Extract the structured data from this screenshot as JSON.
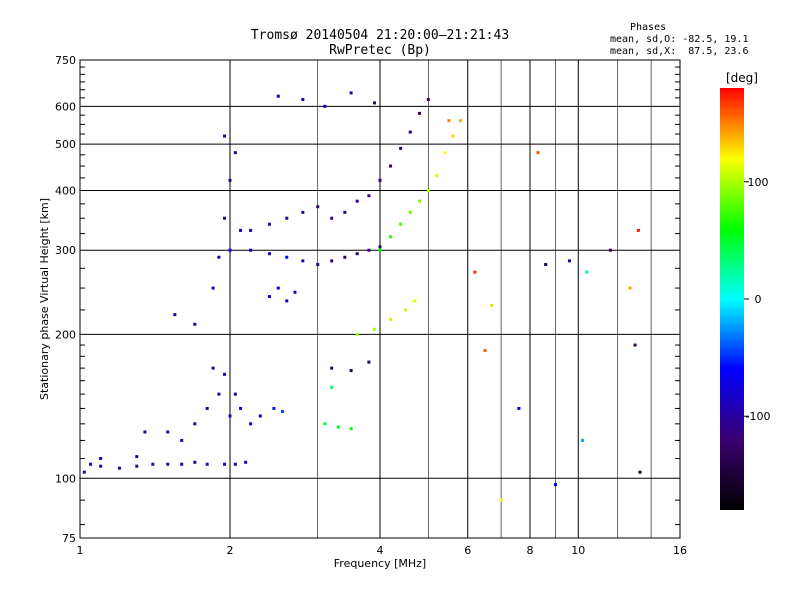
{
  "header": {
    "title": "Tromsø 20140504 21:20:00–21:21:43",
    "subtitle": "RwPretec (Bp)"
  },
  "phase_stats": {
    "label": "Phases",
    "o_line": "mean, sd,O: -82.5, 19.1",
    "x_line": "mean, sd,X:  87.5, 23.6"
  },
  "chart_data": {
    "type": "scatter",
    "xlabel": "Frequency [MHz]",
    "ylabel": "Stationary phase Virtual Height [km]",
    "x_scale": "log2",
    "y_scale": "log",
    "xlim": [
      1,
      16
    ],
    "ylim": [
      75,
      750
    ],
    "x_ticks": [
      1,
      2,
      4,
      6,
      8,
      10,
      16
    ],
    "y_ticks": [
      75,
      100,
      200,
      300,
      400,
      500,
      600,
      750
    ],
    "grid": true,
    "colorbar": {
      "label": "[deg]",
      "range": [
        -180,
        180
      ],
      "ticks": [
        100,
        0,
        -100
      ],
      "colors": [
        "#000000",
        "#3a0070",
        "#0000ff",
        "#00ffff",
        "#00ff00",
        "#ffff00",
        "#ff0000"
      ]
    },
    "series": [
      {
        "values": [
          [
            1.02,
            103,
            -95
          ],
          [
            1.05,
            107,
            -92
          ],
          [
            1.1,
            106,
            -98
          ],
          [
            1.2,
            105,
            -100
          ],
          [
            1.3,
            106,
            -97
          ],
          [
            1.4,
            107,
            -100
          ],
          [
            1.5,
            107,
            -102
          ],
          [
            1.6,
            107,
            -99
          ],
          [
            1.7,
            108,
            -96
          ],
          [
            1.8,
            107,
            -100
          ],
          [
            1.95,
            107,
            -100
          ],
          [
            2.05,
            107,
            -101
          ],
          [
            2.15,
            108,
            -96
          ],
          [
            1.1,
            110,
            -90
          ],
          [
            1.3,
            111,
            -95
          ]
        ]
      },
      {
        "values": [
          [
            1.35,
            125,
            -100
          ],
          [
            1.5,
            125,
            -95
          ],
          [
            1.6,
            120,
            -98
          ],
          [
            1.7,
            130,
            -100
          ],
          [
            1.8,
            140,
            -105
          ],
          [
            1.9,
            150,
            -100
          ],
          [
            2.0,
            135,
            -90
          ],
          [
            2.1,
            140,
            -80
          ],
          [
            2.2,
            130,
            -85
          ],
          [
            2.3,
            135,
            -80
          ],
          [
            2.45,
            140,
            -55
          ],
          [
            2.55,
            138,
            -45
          ],
          [
            1.85,
            170,
            -100
          ],
          [
            1.95,
            165,
            -95
          ],
          [
            2.05,
            150,
            -100
          ]
        ]
      },
      {
        "values": [
          [
            1.55,
            220,
            -95
          ],
          [
            1.7,
            210,
            -90
          ],
          [
            1.85,
            250,
            -95
          ],
          [
            1.9,
            290,
            -100
          ],
          [
            1.95,
            350,
            -105
          ],
          [
            2.0,
            420,
            -110
          ],
          [
            2.05,
            480,
            -110
          ],
          [
            1.95,
            520,
            -100
          ],
          [
            2.1,
            330,
            -90
          ]
        ]
      },
      {
        "values": [
          [
            2.0,
            300,
            -70
          ],
          [
            2.2,
            300,
            -75
          ],
          [
            2.4,
            295,
            -80
          ],
          [
            2.6,
            290,
            -60
          ],
          [
            2.8,
            285,
            -90
          ],
          [
            3.0,
            280,
            -110
          ],
          [
            3.2,
            285,
            -120
          ],
          [
            3.4,
            290,
            -130
          ],
          [
            3.6,
            295,
            -135
          ],
          [
            3.8,
            300,
            -120
          ],
          [
            4.0,
            305,
            -110
          ]
        ]
      },
      {
        "values": [
          [
            2.2,
            330,
            -100
          ],
          [
            2.4,
            340,
            -95
          ],
          [
            2.6,
            350,
            -100
          ],
          [
            2.8,
            360,
            -105
          ],
          [
            3.0,
            370,
            -110
          ],
          [
            3.2,
            350,
            -115
          ],
          [
            3.4,
            360,
            -110
          ],
          [
            3.6,
            380,
            -115
          ],
          [
            3.8,
            390,
            -120
          ],
          [
            4.0,
            420,
            -118
          ],
          [
            4.2,
            450,
            -120
          ],
          [
            4.4,
            490,
            -122
          ],
          [
            4.6,
            530,
            -125
          ],
          [
            4.8,
            580,
            -125
          ],
          [
            5.0,
            620,
            -120
          ]
        ]
      },
      {
        "values": [
          [
            2.4,
            240,
            -75
          ],
          [
            2.5,
            250,
            -70
          ],
          [
            2.6,
            235,
            -80
          ],
          [
            2.7,
            245,
            -85
          ],
          [
            2.5,
            630,
            -95
          ],
          [
            2.8,
            620,
            -85
          ],
          [
            3.1,
            600,
            -80
          ],
          [
            3.5,
            640,
            -100
          ],
          [
            3.9,
            610,
            -110
          ]
        ]
      },
      {
        "values": [
          [
            4.0,
            300,
            60
          ],
          [
            4.2,
            320,
            70
          ],
          [
            4.4,
            340,
            75
          ],
          [
            4.6,
            360,
            85
          ],
          [
            4.8,
            380,
            90
          ],
          [
            5.0,
            400,
            100
          ],
          [
            5.2,
            430,
            110
          ],
          [
            5.4,
            480,
            120
          ],
          [
            5.6,
            520,
            130
          ],
          [
            5.8,
            560,
            140
          ]
        ]
      },
      {
        "values": [
          [
            3.6,
            200,
            95
          ],
          [
            3.9,
            205,
            100
          ],
          [
            4.2,
            215,
            105
          ],
          [
            4.5,
            225,
            110
          ],
          [
            4.7,
            235,
            115
          ],
          [
            3.2,
            170,
            -135
          ],
          [
            3.5,
            168,
            -140
          ],
          [
            3.8,
            175,
            -140
          ],
          [
            3.1,
            130,
            50
          ],
          [
            3.3,
            128,
            55
          ],
          [
            3.5,
            127,
            60
          ],
          [
            3.2,
            155,
            40
          ]
        ]
      },
      {
        "values": [
          [
            5.5,
            560,
            150
          ],
          [
            6.2,
            270,
            170
          ],
          [
            6.5,
            185,
            160
          ],
          [
            6.7,
            230,
            130
          ],
          [
            7.0,
            90,
            120
          ],
          [
            7.6,
            140,
            -60
          ],
          [
            8.3,
            480,
            160
          ],
          [
            8.6,
            280,
            -140
          ],
          [
            9.0,
            97,
            -60
          ],
          [
            9.6,
            285,
            -100
          ],
          [
            10.2,
            120,
            -20
          ],
          [
            10.4,
            270,
            30
          ],
          [
            11.6,
            300,
            -120
          ],
          [
            12.7,
            250,
            140
          ],
          [
            13.0,
            190,
            -130
          ],
          [
            13.3,
            103,
            -150
          ],
          [
            13.2,
            330,
            175
          ]
        ]
      }
    ]
  }
}
